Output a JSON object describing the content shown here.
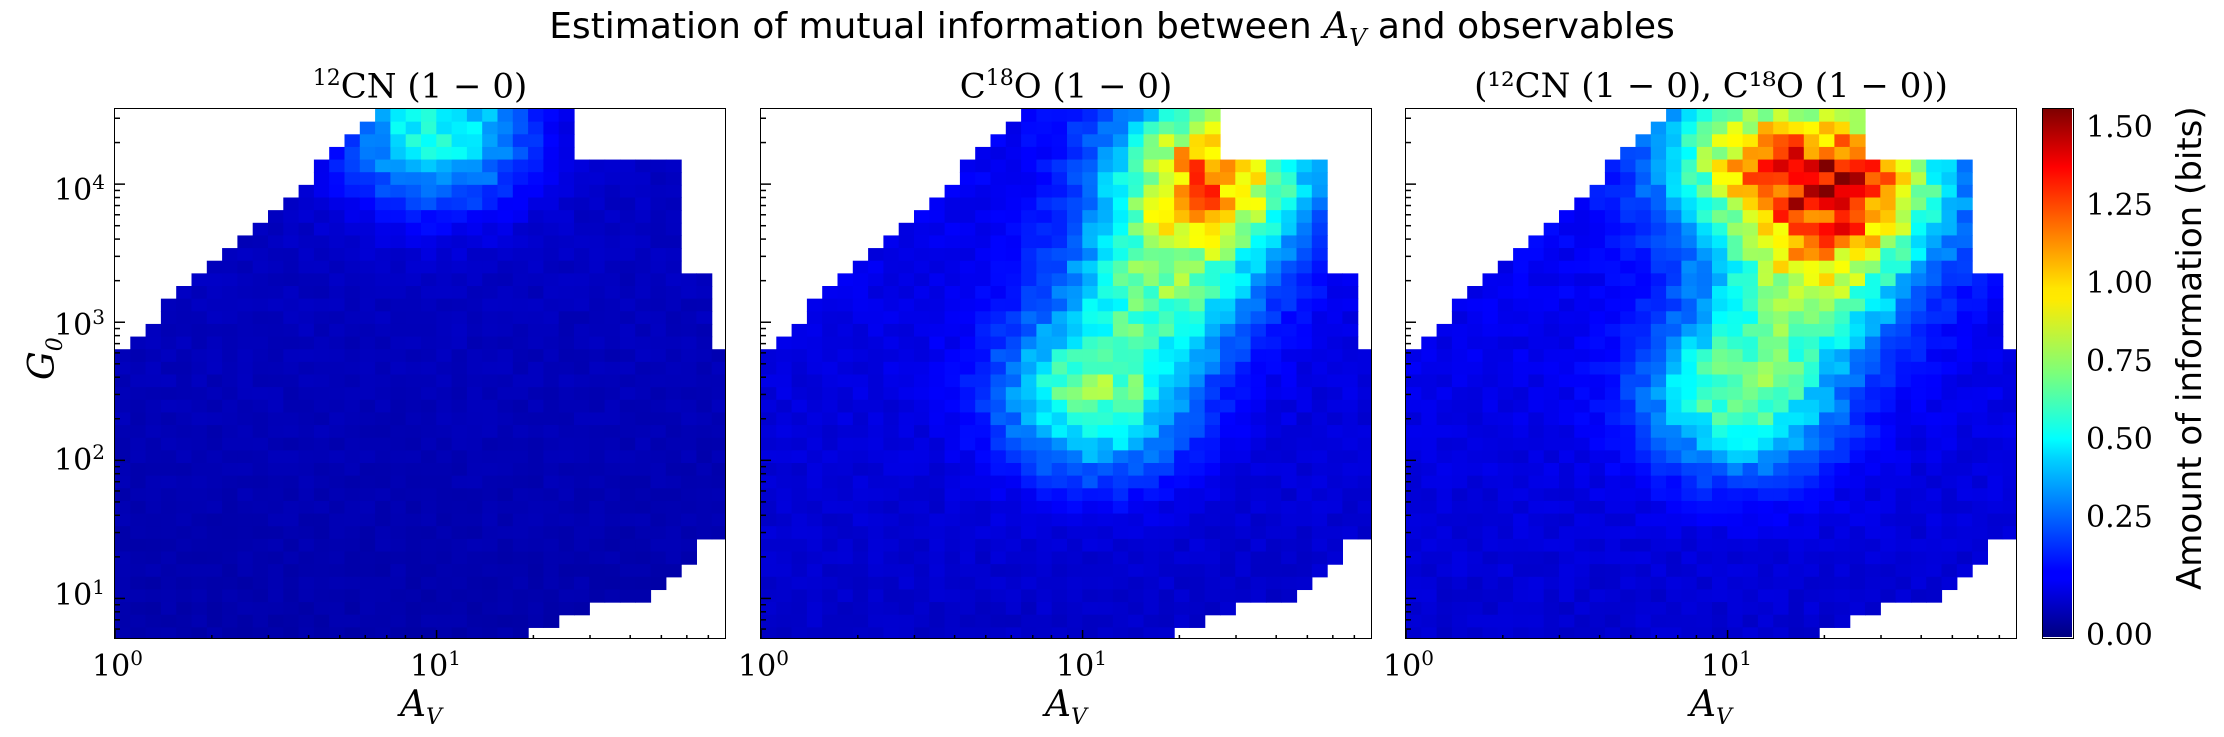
{
  "figure": {
    "title_prefix": "Estimation of mutual information between ",
    "title_var": "A",
    "title_var_sub": "V",
    "title_suffix": " and observables"
  },
  "panels": [
    {
      "title_main": "CN (1 − 0)",
      "title_sup": "12"
    },
    {
      "title_main_a": "C",
      "title_sup": "18",
      "title_main_b": "O (1 − 0)"
    },
    {
      "title_text": "(¹²CN (1 − 0), C¹⁸O (1 − 0))"
    }
  ],
  "axes": {
    "xlabel": "A",
    "xlabel_sub": "V",
    "ylabel": "G",
    "ylabel_sub": "0",
    "x_ticks": [
      {
        "base": "10",
        "exp": "0"
      },
      {
        "base": "10",
        "exp": "1"
      }
    ],
    "y_ticks": [
      {
        "base": "10",
        "exp": "4"
      },
      {
        "base": "10",
        "exp": "3"
      },
      {
        "base": "10",
        "exp": "2"
      },
      {
        "base": "10",
        "exp": "1"
      }
    ]
  },
  "colorbar": {
    "label": "Amount of information (bits)",
    "ticks": [
      "1.50",
      "1.25",
      "1.00",
      "0.75",
      "0.50",
      "0.25",
      "0.00"
    ],
    "colormap": "jet",
    "range": [
      0.0,
      1.7
    ]
  },
  "chart_data": {
    "type": "heatmap",
    "title": "Estimation of mutual information between A_V and observables",
    "xlabel": "A_V",
    "ylabel": "G_0",
    "x_scale": "log",
    "y_scale": "log",
    "xlim": [
      1,
      80
    ],
    "ylim": [
      5,
      35000
    ],
    "colorbar_range": [
      0.0,
      1.7
    ],
    "colorbar_label": "Amount of information (bits)",
    "panels": [
      {
        "title": "12CN (1 − 0)",
        "blobs": [
          {
            "x": 10,
            "y": 25000,
            "value": 0.55
          }
        ],
        "base_value": 0.12
      },
      {
        "title": "C18O (1 − 0)",
        "blobs": [
          {
            "x": 25,
            "y": 12000,
            "value": 1.05
          },
          {
            "x": 11,
            "y": 300,
            "value": 0.65
          },
          {
            "x": 18,
            "y": 2000,
            "value": 0.55
          }
        ],
        "base_value": 0.2
      },
      {
        "title": "(12CN (1 − 0), C18O (1 − 0))",
        "blobs": [
          {
            "x": 25,
            "y": 10000,
            "value": 1.0
          },
          {
            "x": 11,
            "y": 300,
            "value": 0.65
          },
          {
            "x": 12,
            "y": 15000,
            "value": 0.75
          },
          {
            "x": 18,
            "y": 2000,
            "value": 0.6
          }
        ],
        "base_value": 0.22
      }
    ]
  }
}
